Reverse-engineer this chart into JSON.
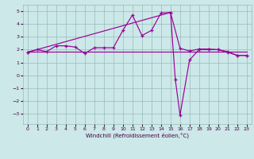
{
  "bg_color": "#cce8e8",
  "line_color": "#990099",
  "grid_color": "#99bbbb",
  "xlabel": "Windchill (Refroidissement éolien,°C)",
  "ylim": [
    -3.8,
    5.5
  ],
  "xlim": [
    -0.5,
    23.5
  ],
  "yticks": [
    -3,
    -2,
    -1,
    0,
    1,
    2,
    3,
    4,
    5
  ],
  "xticks": [
    0,
    1,
    2,
    3,
    4,
    5,
    6,
    7,
    8,
    9,
    10,
    11,
    12,
    13,
    14,
    15,
    16,
    17,
    18,
    19,
    20,
    21,
    22,
    23
  ],
  "series1_x": [
    0,
    1,
    2,
    3,
    4,
    5,
    6,
    7,
    8,
    9,
    10,
    11,
    12,
    13,
    14,
    15,
    16,
    17,
    18,
    19,
    20,
    21,
    22,
    23
  ],
  "series1_y": [
    1.8,
    2.0,
    1.85,
    2.3,
    2.3,
    2.2,
    1.7,
    2.15,
    2.15,
    2.15,
    3.5,
    4.7,
    3.1,
    3.5,
    4.85,
    4.9,
    2.1,
    1.9,
    2.05,
    2.05,
    2.0,
    1.85,
    1.55,
    1.55
  ],
  "series2_x": [
    0,
    1,
    2,
    3,
    4,
    5,
    6,
    7,
    8,
    9,
    10,
    11,
    12,
    13,
    14,
    15,
    16,
    17,
    18,
    19,
    20,
    21,
    22,
    23
  ],
  "series2_y": [
    1.85,
    1.85,
    1.85,
    1.85,
    1.85,
    1.85,
    1.85,
    1.85,
    1.85,
    1.85,
    1.85,
    1.85,
    1.85,
    1.85,
    1.85,
    1.85,
    1.85,
    1.85,
    1.85,
    1.85,
    1.85,
    1.85,
    1.85,
    1.85
  ],
  "series3_x": [
    0,
    15,
    15.5,
    16,
    17,
    18,
    19,
    20,
    21,
    22,
    23
  ],
  "series3_y": [
    1.8,
    4.9,
    -0.3,
    -3.1,
    1.2,
    2.0,
    2.0,
    2.0,
    1.8,
    1.55,
    1.55
  ]
}
